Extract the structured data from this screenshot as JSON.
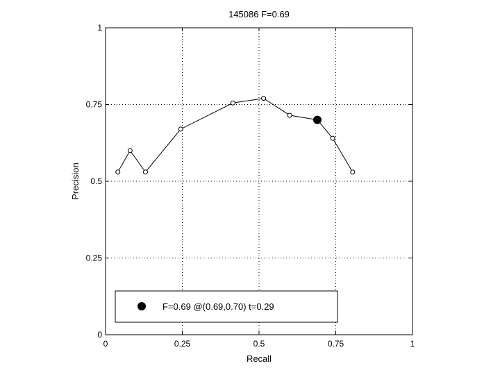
{
  "chart_data": {
    "type": "line",
    "title": "145086 F=0.69",
    "xlabel": "Recall",
    "ylabel": "Precision",
    "xlim": [
      0,
      1
    ],
    "ylim": [
      0,
      1
    ],
    "grid": true,
    "xticks": [
      0,
      0.25,
      0.5,
      0.75,
      1
    ],
    "yticks": [
      0,
      0.25,
      0.5,
      0.75,
      1
    ],
    "xtick_labels": [
      "0",
      "0.25",
      "0.5",
      "0.75",
      "1"
    ],
    "ytick_labels": [
      "0",
      "0.25",
      "0.5",
      "0.75",
      "1"
    ],
    "series": [
      {
        "x": [
          0.04,
          0.08,
          0.13,
          0.245,
          0.415,
          0.515,
          0.6,
          0.69,
          0.74,
          0.805
        ],
        "y": [
          0.53,
          0.6,
          0.53,
          0.67,
          0.755,
          0.77,
          0.715,
          0.7,
          0.64,
          0.53
        ]
      }
    ],
    "best_point": {
      "x": 0.69,
      "y": 0.7
    },
    "legend": {
      "position": "bottom-left",
      "label": "F=0.69 @(0.69,0.70) t=0.29"
    }
  }
}
